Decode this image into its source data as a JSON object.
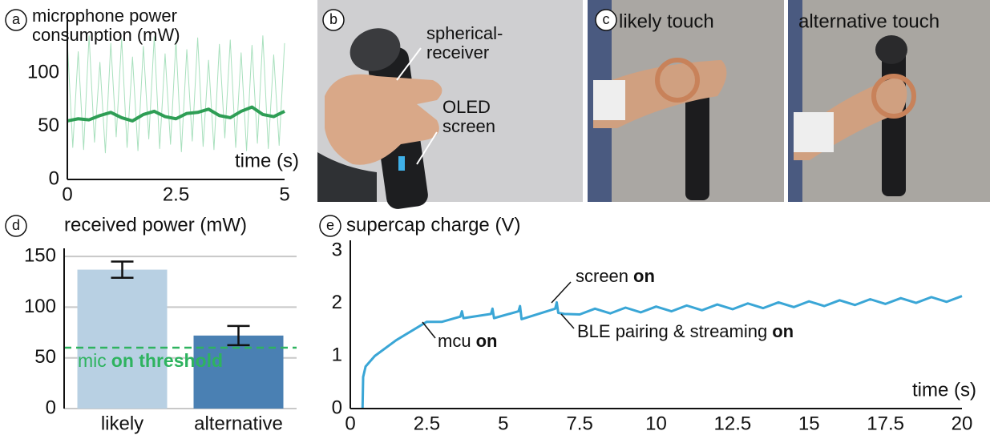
{
  "panel_labels": [
    "a",
    "b",
    "c",
    "d",
    "e"
  ],
  "photos": {
    "b": {
      "annotations": [
        "spherical-receiver",
        "OLED screen"
      ]
    },
    "c": {
      "captions": [
        "likely touch",
        "alternative touch"
      ]
    }
  },
  "chart_data": [
    {
      "type": "line",
      "title": "microphone power consumption (mW)",
      "xlabel": "time (s)",
      "xlim": [
        0,
        5
      ],
      "xticks": [
        0,
        2.5,
        5
      ],
      "ylim": [
        0,
        155
      ],
      "yticks": [
        0,
        50,
        100
      ],
      "series": [
        {
          "color": "#a8e0bd",
          "width": 1,
          "x": [
            0,
            0.125,
            0.25,
            0.375,
            0.5,
            0.625,
            0.75,
            0.875,
            1,
            1.125,
            1.25,
            1.375,
            1.5,
            1.625,
            1.75,
            1.875,
            2,
            2.125,
            2.25,
            2.375,
            2.5,
            2.625,
            2.75,
            2.875,
            3,
            3.125,
            3.25,
            3.375,
            3.5,
            3.625,
            3.75,
            3.875,
            4,
            4.125,
            4.25,
            4.375,
            4.5,
            4.625,
            4.75,
            4.875,
            5
          ],
          "values": [
            130,
            30,
            120,
            28,
            135,
            35,
            110,
            25,
            128,
            40,
            132,
            30,
            115,
            27,
            125,
            38,
            134,
            29,
            118,
            33,
            130,
            26,
            122,
            36,
            133,
            31,
            112,
            28,
            127,
            39,
            131,
            30,
            119,
            27,
            126,
            34,
            135,
            29,
            117,
            32,
            128
          ]
        },
        {
          "color": "#2e9e55",
          "width": 4,
          "x": [
            0,
            0.25,
            0.5,
            0.75,
            1,
            1.25,
            1.5,
            1.75,
            2,
            2.25,
            2.5,
            2.75,
            3,
            3.25,
            3.5,
            3.75,
            4,
            4.25,
            4.5,
            4.75,
            5
          ],
          "values": [
            55,
            57,
            56,
            60,
            63,
            58,
            55,
            61,
            64,
            59,
            57,
            62,
            63,
            66,
            60,
            58,
            64,
            68,
            61,
            59,
            64
          ]
        }
      ]
    },
    {
      "type": "bar",
      "title": "received power (mW)",
      "categories": [
        "likely",
        "alternative"
      ],
      "values": [
        137,
        72
      ],
      "errors": [
        8,
        9.5
      ],
      "colors": [
        "#b8d0e3",
        "#4a80b3"
      ],
      "ylim": [
        0,
        158
      ],
      "yticks": [
        0,
        50,
        100,
        150
      ],
      "grid": true,
      "threshold": 60,
      "threshold_color": "#2eb35f",
      "threshold_label": {
        "text": "mic",
        "bold": "on threshold"
      }
    },
    {
      "type": "line",
      "title": "supercap charge (V)",
      "xlabel": "time (s)",
      "xlim": [
        0,
        20
      ],
      "xticks": [
        0,
        2.5,
        5,
        7.5,
        10,
        12.5,
        15,
        17.5,
        20
      ],
      "ylim": [
        0,
        3.2
      ],
      "yticks": [
        0,
        1,
        2,
        3
      ],
      "series": [
        {
          "color": "#3aa6d6",
          "width": 3,
          "x": [
            0.4,
            0.42,
            0.5,
            0.8,
            1.5,
            2.5,
            3.0,
            3.6,
            3.65,
            3.7,
            4.6,
            4.65,
            4.7,
            5.5,
            5.55,
            5.6,
            6.7,
            6.75,
            6.8,
            7.0,
            7.5,
            8,
            8.5,
            9,
            9.5,
            10,
            10.5,
            11,
            11.5,
            12,
            12.5,
            13,
            13.5,
            14,
            14.5,
            15,
            15.5,
            16,
            16.5,
            17,
            17.5,
            18,
            18.5,
            19,
            19.5,
            20
          ],
          "values": [
            0,
            0.6,
            0.8,
            1.0,
            1.3,
            1.65,
            1.65,
            1.75,
            1.85,
            1.72,
            1.8,
            1.9,
            1.72,
            1.85,
            1.95,
            1.7,
            1.9,
            2.02,
            1.82,
            1.8,
            1.79,
            1.9,
            1.81,
            1.92,
            1.83,
            1.94,
            1.85,
            1.96,
            1.87,
            1.98,
            1.89,
            2.0,
            1.91,
            2.02,
            1.93,
            2.04,
            1.95,
            2.06,
            1.97,
            2.08,
            1.99,
            2.1,
            2.01,
            2.12,
            2.03,
            2.14
          ]
        }
      ],
      "annotations": [
        {
          "text": "mcu",
          "bold": "on"
        },
        {
          "text": "screen",
          "bold": "on"
        },
        {
          "text": "BLE pairing & streaming",
          "bold": "on"
        }
      ]
    }
  ]
}
